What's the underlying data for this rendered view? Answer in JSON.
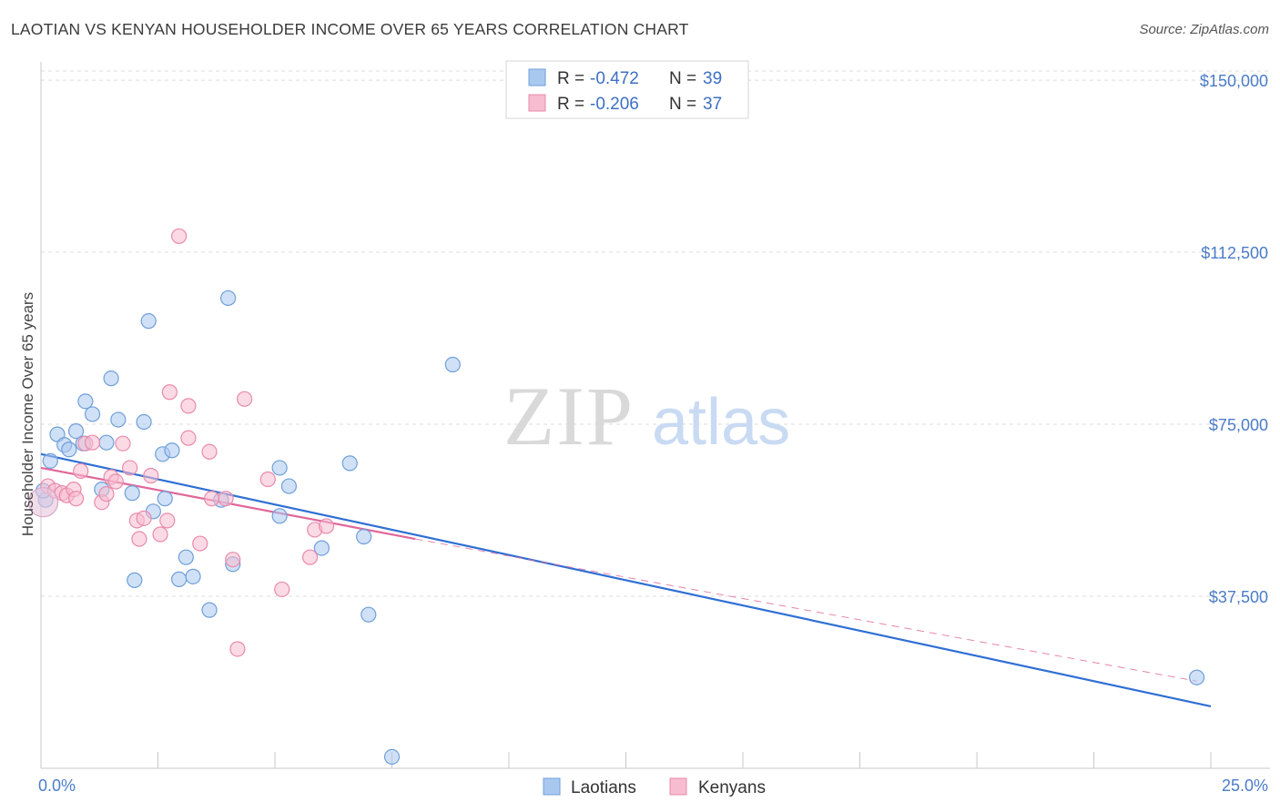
{
  "header": {
    "title": "LAOTIAN VS KENYAN HOUSEHOLDER INCOME OVER 65 YEARS CORRELATION CHART",
    "source": "Source: ZipAtlas.com"
  },
  "watermark": {
    "zip": "ZIP",
    "atlas": "atlas"
  },
  "legend": {
    "rows": [
      {
        "r_label": "R =",
        "r_value": "-0.472",
        "n_label": "N =",
        "n_value": "39",
        "color": "#a9c8f0",
        "stroke": "#6f9fd8"
      },
      {
        "r_label": "R =",
        "r_value": "-0.206",
        "n_label": "N =",
        "n_value": "37",
        "color": "#f7bcd0",
        "stroke": "#e98aab"
      }
    ]
  },
  "chart_data": {
    "type": "scatter",
    "title": "LAOTIAN VS KENYAN HOUSEHOLDER INCOME OVER 65 YEARS CORRELATION CHART",
    "xlabel": "",
    "ylabel": "Householder Income Over 65 years",
    "xlim": [
      0,
      25
    ],
    "ylim": [
      0,
      152000
    ],
    "x_tick_labels": [
      "0.0%",
      "25.0%"
    ],
    "y_ticks": [
      37500,
      75000,
      112500,
      150000
    ],
    "y_tick_labels": [
      "$37,500",
      "$75,000",
      "$112,500",
      "$150,000"
    ],
    "grid": true,
    "legend_position": "top-center",
    "series": [
      {
        "name": "Laotians",
        "color": "#a9c8f0",
        "stroke": "#6f9fd8",
        "line_color": "#2f6fd4",
        "trend": {
          "x0": 0,
          "y0": 68500,
          "x1": 25,
          "y1": 13500,
          "dashed_extension": false
        },
        "points": [
          [
            0.2,
            67000
          ],
          [
            0.35,
            72800
          ],
          [
            0.5,
            70500
          ],
          [
            0.6,
            69500
          ],
          [
            0.75,
            73500
          ],
          [
            0.9,
            70800
          ],
          [
            0.95,
            80000
          ],
          [
            1.1,
            77200
          ],
          [
            1.3,
            60800
          ],
          [
            1.4,
            71000
          ],
          [
            1.5,
            85000
          ],
          [
            1.65,
            76000
          ],
          [
            1.95,
            60000
          ],
          [
            2.0,
            41000
          ],
          [
            2.2,
            75500
          ],
          [
            2.3,
            97500
          ],
          [
            2.4,
            56000
          ],
          [
            2.6,
            68500
          ],
          [
            2.65,
            58800
          ],
          [
            2.8,
            69300
          ],
          [
            2.95,
            41200
          ],
          [
            3.1,
            46000
          ],
          [
            3.25,
            41800
          ],
          [
            3.6,
            34500
          ],
          [
            3.85,
            58500
          ],
          [
            4.1,
            44500
          ],
          [
            4.0,
            102500
          ],
          [
            5.1,
            55000
          ],
          [
            5.1,
            65500
          ],
          [
            5.3,
            61500
          ],
          [
            6.0,
            48000
          ],
          [
            6.6,
            66500
          ],
          [
            6.9,
            50500
          ],
          [
            7.0,
            33500
          ],
          [
            7.5,
            2500
          ],
          [
            8.8,
            88000
          ],
          [
            24.7,
            19800
          ],
          [
            0.1,
            58500
          ],
          [
            0.05,
            60500
          ]
        ]
      },
      {
        "name": "Kenyans",
        "color": "#f7bcd0",
        "stroke": "#e98aab",
        "line_color": "#e0679a",
        "trend": {
          "x0": 0,
          "y0": 65500,
          "x1": 8,
          "y1": 50000,
          "ext_x1": 24.7,
          "ext_y1": 19000,
          "dashed_extension": true
        },
        "points": [
          [
            0.15,
            61500
          ],
          [
            0.3,
            60500
          ],
          [
            0.45,
            60000
          ],
          [
            0.55,
            59500
          ],
          [
            0.7,
            60800
          ],
          [
            0.75,
            58800
          ],
          [
            0.85,
            64800
          ],
          [
            0.95,
            70800
          ],
          [
            1.1,
            71000
          ],
          [
            1.3,
            58000
          ],
          [
            1.4,
            59800
          ],
          [
            1.5,
            63500
          ],
          [
            1.6,
            62500
          ],
          [
            1.75,
            70800
          ],
          [
            1.9,
            65500
          ],
          [
            2.05,
            54000
          ],
          [
            2.1,
            50000
          ],
          [
            2.2,
            54500
          ],
          [
            2.35,
            63800
          ],
          [
            2.55,
            51000
          ],
          [
            2.7,
            54000
          ],
          [
            2.75,
            82000
          ],
          [
            2.95,
            116000
          ],
          [
            3.15,
            72000
          ],
          [
            3.15,
            79000
          ],
          [
            3.4,
            49000
          ],
          [
            3.6,
            69000
          ],
          [
            3.65,
            58800
          ],
          [
            3.95,
            58800
          ],
          [
            4.1,
            45500
          ],
          [
            4.2,
            26000
          ],
          [
            4.35,
            80500
          ],
          [
            4.85,
            63000
          ],
          [
            5.15,
            39000
          ],
          [
            5.75,
            46000
          ],
          [
            5.85,
            52000
          ],
          [
            6.1,
            52800
          ]
        ]
      }
    ]
  }
}
